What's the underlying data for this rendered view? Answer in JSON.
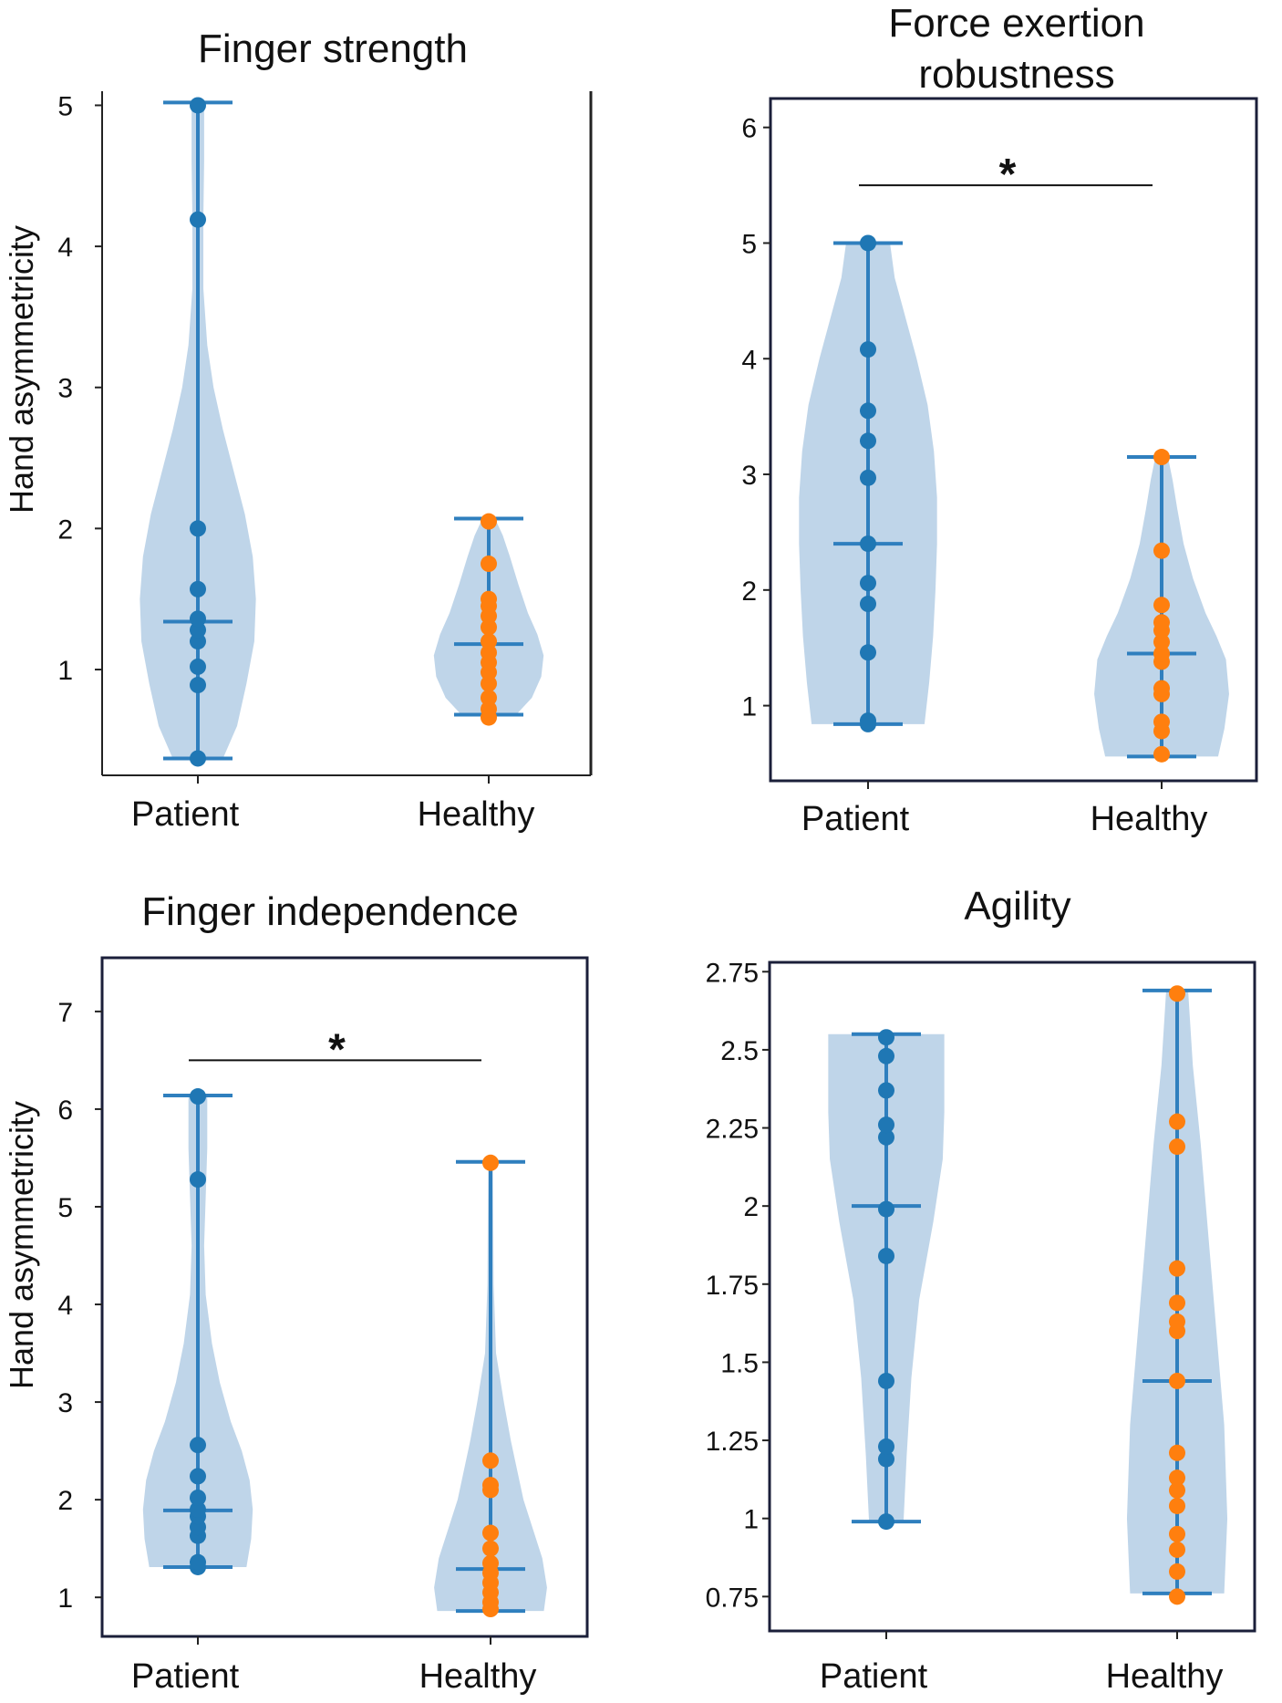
{
  "colors": {
    "violin_fill": "#bcd3e8",
    "line": "#2f7fbe",
    "patient_point": "#1f77b4",
    "healthy_point": "#ff7f0e",
    "frame": "#1b1f3a"
  },
  "chart_data": [
    {
      "type": "violin",
      "title": "Finger strength",
      "ylabel": "Hand asymmetricity",
      "categories": [
        "Patient",
        "Healthy"
      ],
      "ylim": [
        0.25,
        5.1
      ],
      "yticks": [
        1,
        2,
        3,
        4,
        5
      ],
      "ytick_labels": [
        "1",
        "2",
        "3",
        "4",
        "5"
      ],
      "significance": null,
      "series": [
        {
          "name": "Patient",
          "min": 0.37,
          "max": 5.02,
          "mean": 1.34,
          "points": [
            0.37,
            0.89,
            1.02,
            1.2,
            1.28,
            1.36,
            1.57,
            2.0,
            4.19,
            5.0
          ],
          "density": [
            [
              0.37,
              0.32
            ],
            [
              0.6,
              0.5
            ],
            [
              0.9,
              0.62
            ],
            [
              1.2,
              0.72
            ],
            [
              1.5,
              0.74
            ],
            [
              1.8,
              0.7
            ],
            [
              2.1,
              0.6
            ],
            [
              2.4,
              0.46
            ],
            [
              2.7,
              0.32
            ],
            [
              3.0,
              0.2
            ],
            [
              3.3,
              0.12
            ],
            [
              3.7,
              0.07
            ],
            [
              4.2,
              0.07
            ],
            [
              4.6,
              0.08
            ],
            [
              5.02,
              0.08
            ]
          ]
        },
        {
          "name": "Healthy",
          "min": 0.68,
          "max": 2.07,
          "mean": 1.18,
          "points": [
            0.66,
            0.72,
            0.8,
            0.9,
            0.98,
            1.05,
            1.12,
            1.2,
            1.3,
            1.38,
            1.45,
            1.5,
            1.75,
            2.05
          ],
          "density": [
            [
              0.68,
              0.35
            ],
            [
              0.8,
              0.55
            ],
            [
              0.95,
              0.67
            ],
            [
              1.1,
              0.7
            ],
            [
              1.25,
              0.62
            ],
            [
              1.4,
              0.5
            ],
            [
              1.6,
              0.38
            ],
            [
              1.8,
              0.27
            ],
            [
              1.95,
              0.18
            ],
            [
              2.07,
              0.08
            ]
          ]
        }
      ]
    },
    {
      "type": "violin",
      "title": "Force exertion robustness",
      "title_lines": [
        "Force exertion",
        "robustness"
      ],
      "ylabel": "",
      "categories": [
        "Patient",
        "Healthy"
      ],
      "ylim": [
        0.35,
        6.25
      ],
      "yticks": [
        1,
        2,
        3,
        4,
        5,
        6
      ],
      "ytick_labels": [
        "1",
        "2",
        "3",
        "4",
        "5",
        "6"
      ],
      "significance": {
        "label": "*",
        "y": 5.5
      },
      "series": [
        {
          "name": "Patient",
          "min": 0.84,
          "max": 5.0,
          "mean": 2.4,
          "points": [
            0.84,
            0.87,
            1.46,
            1.88,
            2.06,
            2.4,
            2.97,
            3.29,
            3.55,
            4.08,
            5.0
          ],
          "density": [
            [
              0.84,
              0.72
            ],
            [
              1.2,
              0.78
            ],
            [
              1.6,
              0.83
            ],
            [
              2.0,
              0.86
            ],
            [
              2.4,
              0.88
            ],
            [
              2.8,
              0.88
            ],
            [
              3.2,
              0.84
            ],
            [
              3.6,
              0.76
            ],
            [
              4.0,
              0.62
            ],
            [
              4.4,
              0.46
            ],
            [
              4.7,
              0.34
            ],
            [
              5.0,
              0.28
            ]
          ]
        },
        {
          "name": "Healthy",
          "min": 0.56,
          "max": 3.15,
          "mean": 1.45,
          "points": [
            0.58,
            0.78,
            0.86,
            1.1,
            1.15,
            1.38,
            1.45,
            1.55,
            1.65,
            1.72,
            1.87,
            2.34,
            3.15
          ],
          "density": [
            [
              0.56,
              0.72
            ],
            [
              0.8,
              0.8
            ],
            [
              1.1,
              0.86
            ],
            [
              1.4,
              0.82
            ],
            [
              1.6,
              0.7
            ],
            [
              1.8,
              0.56
            ],
            [
              2.1,
              0.4
            ],
            [
              2.4,
              0.28
            ],
            [
              2.7,
              0.2
            ],
            [
              2.95,
              0.14
            ],
            [
              3.15,
              0.08
            ]
          ]
        }
      ]
    },
    {
      "type": "violin",
      "title": "Finger independence",
      "ylabel": "Hand asymmetricity",
      "categories": [
        "Patient",
        "Healthy"
      ],
      "ylim": [
        0.6,
        7.55
      ],
      "yticks": [
        1,
        2,
        3,
        4,
        5,
        6,
        7
      ],
      "ytick_labels": [
        "1",
        "2",
        "3",
        "4",
        "5",
        "6",
        "7"
      ],
      "significance": {
        "label": "*",
        "y": 6.5
      },
      "series": [
        {
          "name": "Patient",
          "min": 1.31,
          "max": 6.14,
          "mean": 1.89,
          "points": [
            1.31,
            1.36,
            1.63,
            1.72,
            1.83,
            1.9,
            2.02,
            2.24,
            2.56,
            5.28,
            6.13
          ],
          "density": [
            [
              1.31,
              0.62
            ],
            [
              1.6,
              0.68
            ],
            [
              1.9,
              0.7
            ],
            [
              2.2,
              0.66
            ],
            [
              2.5,
              0.56
            ],
            [
              2.8,
              0.42
            ],
            [
              3.2,
              0.28
            ],
            [
              3.6,
              0.18
            ],
            [
              4.1,
              0.1
            ],
            [
              4.6,
              0.08
            ],
            [
              5.1,
              0.1
            ],
            [
              5.6,
              0.12
            ],
            [
              6.14,
              0.12
            ]
          ]
        },
        {
          "name": "Healthy",
          "min": 0.86,
          "max": 5.46,
          "mean": 1.29,
          "points": [
            0.88,
            0.95,
            1.05,
            1.15,
            1.25,
            1.35,
            1.5,
            1.66,
            2.1,
            2.15,
            2.4,
            5.45
          ],
          "density": [
            [
              0.86,
              0.68
            ],
            [
              1.1,
              0.72
            ],
            [
              1.4,
              0.66
            ],
            [
              1.7,
              0.54
            ],
            [
              2.0,
              0.42
            ],
            [
              2.3,
              0.34
            ],
            [
              2.6,
              0.26
            ],
            [
              3.0,
              0.17
            ],
            [
              3.5,
              0.07
            ],
            [
              4.2,
              0.04
            ],
            [
              5.46,
              0.03
            ]
          ]
        }
      ]
    },
    {
      "type": "violin",
      "title": "Agility",
      "ylabel": "",
      "categories": [
        "Patient",
        "Healthy"
      ],
      "ylim": [
        0.64,
        2.78
      ],
      "yticks": [
        0.75,
        1,
        1.25,
        1.5,
        1.75,
        2,
        2.25,
        2.5,
        2.75
      ],
      "ytick_labels": [
        "0.75",
        "1",
        "1.25",
        "1.5",
        "1.75",
        "2",
        "2.25",
        "2.5",
        "2.75"
      ],
      "significance": null,
      "series": [
        {
          "name": "Patient",
          "min": 0.99,
          "max": 2.55,
          "mean": 2.0,
          "points": [
            0.99,
            1.19,
            1.23,
            1.44,
            1.84,
            1.99,
            2.22,
            2.26,
            2.37,
            2.48,
            2.54
          ],
          "density": [
            [
              0.99,
              0.22
            ],
            [
              1.2,
              0.26
            ],
            [
              1.45,
              0.32
            ],
            [
              1.7,
              0.42
            ],
            [
              1.95,
              0.6
            ],
            [
              2.15,
              0.72
            ],
            [
              2.3,
              0.74
            ],
            [
              2.45,
              0.74
            ],
            [
              2.55,
              0.74
            ]
          ]
        },
        {
          "name": "Healthy",
          "min": 0.76,
          "max": 2.69,
          "mean": 1.44,
          "points": [
            0.75,
            0.83,
            0.9,
            0.95,
            1.04,
            1.09,
            1.13,
            1.21,
            1.44,
            1.6,
            1.63,
            1.69,
            1.8,
            2.19,
            2.27,
            2.68
          ],
          "density": [
            [
              0.76,
              0.6
            ],
            [
              1.0,
              0.64
            ],
            [
              1.3,
              0.6
            ],
            [
              1.6,
              0.5
            ],
            [
              1.9,
              0.4
            ],
            [
              2.2,
              0.3
            ],
            [
              2.45,
              0.2
            ],
            [
              2.69,
              0.14
            ]
          ]
        }
      ]
    }
  ]
}
